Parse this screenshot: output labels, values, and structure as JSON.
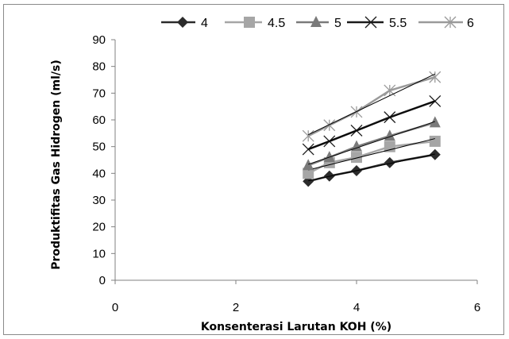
{
  "chart_data": {
    "type": "scatter",
    "title": "",
    "xlabel": "Konsenterasi Larutan KOH (%)",
    "ylabel": "Produktifitas Gas Hidrogen (ml/s)",
    "xlim": [
      0,
      6
    ],
    "ylim": [
      0,
      90
    ],
    "xticks": [
      "0",
      "2",
      "4",
      "6"
    ],
    "yticks": [
      "0",
      "10",
      "20",
      "30",
      "40",
      "50",
      "60",
      "70",
      "80",
      "90"
    ],
    "grid": false,
    "legend_position": "top",
    "x": [
      3.2,
      3.55,
      4.0,
      4.55,
      5.3
    ],
    "series": [
      {
        "name": "4",
        "marker": "diamond",
        "color": "#2b2b2b",
        "values": [
          37,
          39,
          41,
          44,
          47
        ]
      },
      {
        "name": "4.5",
        "marker": "square",
        "color": "#a6a6a6",
        "values": [
          40,
          44,
          46,
          50,
          52
        ]
      },
      {
        "name": "5",
        "marker": "triangle",
        "color": "#7a7a7a",
        "values": [
          43,
          46,
          50,
          54,
          59
        ]
      },
      {
        "name": "5.5",
        "marker": "x",
        "color": "#1a1a1a",
        "values": [
          49,
          52,
          56,
          61,
          67
        ]
      },
      {
        "name": "6",
        "marker": "asterisk",
        "color": "#9a9a9a",
        "values": [
          54,
          58,
          63,
          71,
          76
        ]
      }
    ],
    "trendlines": true
  }
}
